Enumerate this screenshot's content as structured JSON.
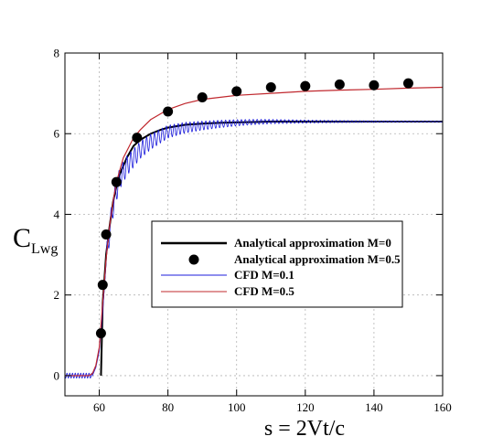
{
  "chart_data": {
    "type": "line",
    "xlabel": "s = 2Vt/c",
    "ylabel_main": "C",
    "ylabel_sub": "Lwg",
    "xlim": [
      50,
      160
    ],
    "ylim": [
      -0.5,
      8
    ],
    "x_ticks": [
      60,
      80,
      100,
      120,
      140,
      160
    ],
    "y_ticks": [
      0,
      2,
      4,
      6,
      8
    ],
    "grid": true,
    "legend_placement": "center-right",
    "series": [
      {
        "name": "Analytical approximation M=0",
        "style": "line",
        "color": "#000000",
        "x": [
          60.5,
          61,
          62,
          63,
          64,
          65,
          66,
          68,
          70,
          72,
          75,
          78,
          80,
          85,
          90,
          95,
          100,
          105,
          110,
          120,
          130,
          140,
          150,
          160
        ],
        "y": [
          0,
          1.8,
          3.0,
          3.7,
          4.3,
          4.7,
          5.0,
          5.4,
          5.7,
          5.85,
          6.0,
          6.1,
          6.15,
          6.22,
          6.25,
          6.27,
          6.28,
          6.29,
          6.3,
          6.3,
          6.3,
          6.3,
          6.3,
          6.3
        ]
      },
      {
        "name": "Analytical approximation M=0.5",
        "style": "markers",
        "color": "#000000",
        "x": [
          60.5,
          61,
          62,
          65,
          71,
          80,
          90,
          100,
          110,
          120,
          130,
          140,
          150
        ],
        "y": [
          1.05,
          2.25,
          3.5,
          4.8,
          5.9,
          6.55,
          6.9,
          7.05,
          7.15,
          7.18,
          7.22,
          7.2,
          7.25
        ]
      },
      {
        "name": "CFD M=0.1",
        "style": "line",
        "color": "#1c1cdc",
        "oscillation_amplitude": 0.3,
        "x": [
          50,
          57,
          58,
          59,
          60,
          61,
          62,
          63,
          64,
          65,
          66,
          68,
          70,
          72,
          75,
          78,
          80,
          85,
          90,
          95,
          100,
          105,
          110,
          120,
          130,
          140,
          150,
          160
        ],
        "y": [
          0,
          0,
          0,
          0.2,
          0.6,
          1.6,
          2.8,
          3.6,
          4.2,
          4.6,
          4.9,
          5.2,
          5.4,
          5.6,
          5.8,
          5.95,
          6.05,
          6.15,
          6.2,
          6.24,
          6.27,
          6.29,
          6.3,
          6.3,
          6.3,
          6.3,
          6.3,
          6.3
        ]
      },
      {
        "name": "CFD M=0.5",
        "style": "line",
        "color": "#c0282e",
        "x": [
          50,
          57,
          58,
          59,
          60,
          61,
          62,
          63,
          64,
          65,
          67,
          70,
          72,
          75,
          80,
          85,
          90,
          100,
          110,
          120,
          130,
          140,
          150,
          160
        ],
        "y": [
          0,
          0,
          0.05,
          0.25,
          0.7,
          1.8,
          2.9,
          3.7,
          4.3,
          4.8,
          5.4,
          5.9,
          6.1,
          6.35,
          6.6,
          6.75,
          6.85,
          6.95,
          7.0,
          7.05,
          7.08,
          7.1,
          7.13,
          7.15
        ]
      }
    ]
  }
}
